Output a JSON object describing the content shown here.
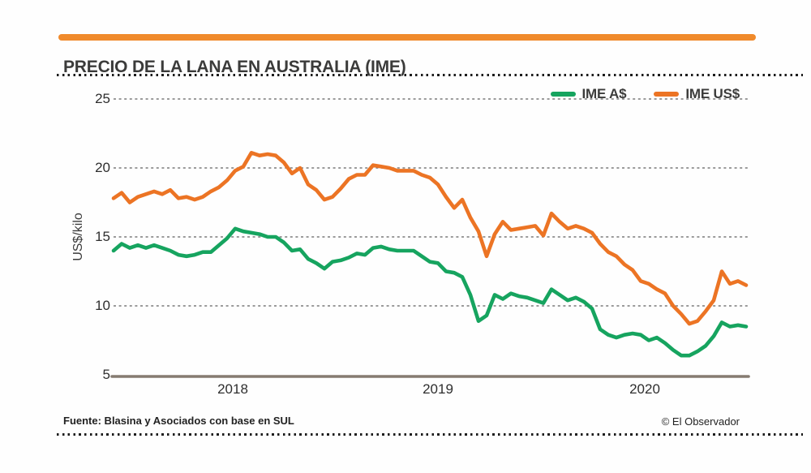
{
  "header": {
    "title": "PRECIO DE LA LANA EN AUSTRALIA (IME)"
  },
  "footer": {
    "source": "Fuente: Blasina y Asociados con base en SUL",
    "credit": "© El Observador"
  },
  "colors": {
    "top_bar": "#F08A2B",
    "aud_line": "#16A45F",
    "usd_line": "#EC7424",
    "axis_line": "#857B71",
    "gridline": "#7a7a7a",
    "text": "#3B3B3A"
  },
  "chart_data": {
    "type": "line",
    "title": "PRECIO DE LA LANA EN AUSTRALIA (IME)",
    "ylabel": "US$/kilo",
    "ylim": [
      5,
      26
    ],
    "y_ticks": [
      25,
      20,
      15,
      10,
      5
    ],
    "x_ticks": [
      "2018",
      "2019",
      "2020"
    ],
    "x_note": "evenly spaced weekly-style samples from mid-2017 to mid-2020; year ticks mark Jan 2018, Jan 2019, Jan 2020",
    "grid": "horizontal dashed gridlines at 10,15,20,25; solid baseline at 5",
    "legend_position": "top-right",
    "series": [
      {
        "name": "IME A$",
        "color": "#16A45F",
        "values": [
          14.0,
          14.5,
          14.2,
          14.4,
          14.2,
          14.4,
          14.2,
          14.0,
          13.7,
          13.6,
          13.7,
          13.9,
          13.9,
          14.4,
          14.9,
          15.6,
          15.4,
          15.3,
          15.2,
          15.0,
          15.0,
          14.6,
          14.0,
          14.1,
          13.4,
          13.1,
          12.7,
          13.2,
          13.3,
          13.5,
          13.8,
          13.7,
          14.2,
          14.3,
          14.1,
          14.0,
          14.0,
          14.0,
          13.6,
          13.2,
          13.1,
          12.5,
          12.4,
          12.1,
          10.8,
          8.9,
          9.3,
          10.8,
          10.5,
          10.9,
          10.7,
          10.6,
          10.4,
          10.2,
          11.2,
          10.8,
          10.4,
          10.6,
          10.3,
          9.8,
          8.3,
          7.9,
          7.7,
          7.9,
          8.0,
          7.9,
          7.5,
          7.7,
          7.3,
          6.8,
          6.4,
          6.4,
          6.7,
          7.1,
          7.8,
          8.8,
          8.5,
          8.6,
          8.5
        ]
      },
      {
        "name": "IME US$",
        "color": "#EC7424",
        "values": [
          17.8,
          18.2,
          17.5,
          17.9,
          18.1,
          18.3,
          18.1,
          18.4,
          17.8,
          17.9,
          17.7,
          17.9,
          18.3,
          18.6,
          19.1,
          19.8,
          20.1,
          21.1,
          20.9,
          21.0,
          20.9,
          20.4,
          19.6,
          20.0,
          18.8,
          18.4,
          17.7,
          17.9,
          18.5,
          19.2,
          19.5,
          19.5,
          20.2,
          20.1,
          20.0,
          19.8,
          19.8,
          19.8,
          19.5,
          19.3,
          18.8,
          17.9,
          17.1,
          17.7,
          16.4,
          15.4,
          13.6,
          15.2,
          16.1,
          15.5,
          15.6,
          15.7,
          15.8,
          15.1,
          16.7,
          16.1,
          15.6,
          15.8,
          15.6,
          15.3,
          14.5,
          13.9,
          13.6,
          13.0,
          12.6,
          11.8,
          11.6,
          11.2,
          10.9,
          10.0,
          9.4,
          8.7,
          8.9,
          9.6,
          10.4,
          12.5,
          11.6,
          11.8,
          11.5
        ]
      }
    ]
  }
}
